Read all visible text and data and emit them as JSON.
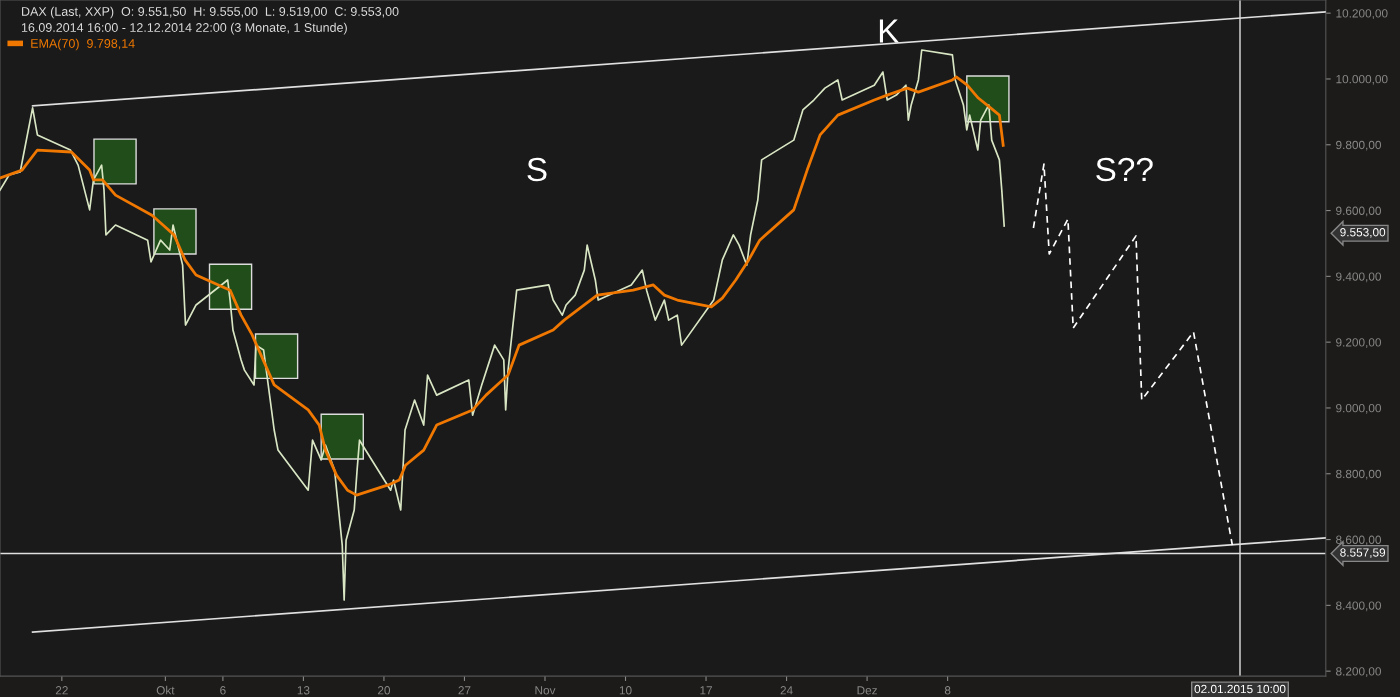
{
  "chart_data": {
    "type": "line",
    "title": "DAX (Last, XXP)  O: 9.551,50  H: 9.555,00  L: 9.519,00  C: 9.553,00",
    "subtitle": "16.09.2014 16:00 - 12.12.2014 22:00 (3 Monate, 1 Stunde)",
    "xlim": [
      "2014-09-16T15:00",
      "2015-01-09T21:00"
    ],
    "ylim": [
      8185,
      10240
    ],
    "xticks": [
      {
        "value": "2014-09-22",
        "label": "22"
      },
      {
        "value": "2014-10-01",
        "label": "Okt"
      },
      {
        "value": "2014-10-06",
        "label": "6"
      },
      {
        "value": "2014-10-13",
        "label": "13"
      },
      {
        "value": "2014-10-20",
        "label": "20"
      },
      {
        "value": "2014-10-27",
        "label": "27"
      },
      {
        "value": "2014-11-03",
        "label": "Nov"
      },
      {
        "value": "2014-11-10",
        "label": "10"
      },
      {
        "value": "2014-11-17",
        "label": "17"
      },
      {
        "value": "2014-11-24",
        "label": "24"
      },
      {
        "value": "2014-12-01",
        "label": "Dez"
      },
      {
        "value": "2014-12-08",
        "label": "8"
      }
    ],
    "yticks": [
      {
        "value": 8200,
        "label": "8.200,00"
      },
      {
        "value": 8400,
        "label": "8.400,00"
      },
      {
        "value": 8600,
        "label": "8.600,00"
      },
      {
        "value": 8800,
        "label": "8.800,00"
      },
      {
        "value": 9000,
        "label": "9.000,00"
      },
      {
        "value": 9200,
        "label": "9.200,00"
      },
      {
        "value": 9400,
        "label": "9.400,00"
      },
      {
        "value": 9600,
        "label": "9.600,00"
      },
      {
        "value": 9800,
        "label": "9.800,00"
      },
      {
        "value": 10000,
        "label": "10.000,00"
      },
      {
        "value": 10200,
        "label": "10.200,00"
      }
    ],
    "grid": false,
    "legend": "top left",
    "series": [
      {
        "type": "bar",
        "color": "#214d1a",
        "x": [
          "2014-09-26T15:00",
          "2014-10-01T20:00",
          "2014-10-06T16:00",
          "2014-10-10T16:00",
          "2014-10-16T09:00",
          "2014-12-11T12:00"
        ],
        "base": [
          9681,
          9468,
          9300,
          9090,
          8845,
          9870
        ],
        "values": [
          136,
          137,
          137,
          135,
          136,
          139
        ]
      },
      {
        "color": "#d9e6c4",
        "x": [
          "2014-09-16T15:00",
          "2014-09-17T10:00",
          "2014-09-18T09:00",
          "2014-09-18T18:00",
          "2014-09-19T11:00",
          "2014-09-19T21:00",
          "2014-09-22T18:00",
          "2014-09-23T10:00",
          "2014-09-24T10:00",
          "2014-09-24T18:00",
          "2014-09-25T11:00",
          "2014-09-25T16:00",
          "2014-09-25T20:00",
          "2014-09-26T16:00",
          "2014-09-29T11:00",
          "2014-09-29T18:00",
          "2014-09-30T14:00",
          "2014-10-01T09:00",
          "2014-10-01T16:00",
          "2014-10-02T12:00",
          "2014-10-02T18:00",
          "2014-10-03T16:00",
          "2014-10-06T10:00",
          "2014-10-06T15:00",
          "2014-10-06T21:00",
          "2014-10-07T14:00",
          "2014-10-07T21:00",
          "2014-10-08T17:00",
          "2014-10-08T21:00",
          "2014-10-09T13:00",
          "2014-10-10T11:00",
          "2014-10-10T19:00",
          "2014-10-13T10:00",
          "2014-10-13T19:00",
          "2014-10-14T13:00",
          "2014-10-14T22:00",
          "2014-10-15T17:00",
          "2014-10-16T09:00",
          "2014-10-16T13:00",
          "2014-10-16T17:00",
          "2014-10-17T10:00",
          "2014-10-17T16:00",
          "2014-10-17T21:00",
          "2014-10-20T14:00",
          "2014-10-20T20:00",
          "2014-10-21T11:00",
          "2014-10-21T20:00",
          "2014-10-22T16:00",
          "2014-10-23T11:00",
          "2014-10-23T19:00",
          "2014-10-24T14:00",
          "2014-10-27T09:00",
          "2014-10-27T17:00",
          "2014-10-28T12:00",
          "2014-10-29T15:00",
          "2014-10-30T10:00",
          "2014-10-30T14:00",
          "2014-10-30T19:00",
          "2014-10-31T13:00",
          "2014-11-03T08:00",
          "2014-11-03T17:00",
          "2014-11-04T12:00",
          "2014-11-04T20:00",
          "2014-11-05T15:00",
          "2014-11-06T10:00",
          "2014-11-06T16:00",
          "2014-11-07T09:00",
          "2014-11-07T15:00",
          "2014-11-10T12:00",
          "2014-11-11T11:00",
          "2014-11-11T20:00",
          "2014-11-12T14:00",
          "2014-11-13T09:00",
          "2014-11-13T18:00",
          "2014-11-14T12:00",
          "2014-11-14T21:00",
          "2014-11-17T16:00",
          "2014-11-18T10:00",
          "2014-11-19T09:00",
          "2014-11-19T21:00",
          "2014-11-20T13:00",
          "2014-11-20T21:00",
          "2014-11-21T12:00",
          "2014-11-21T20:00",
          "2014-11-24T15:00",
          "2014-11-25T10:00",
          "2014-11-26T09:00",
          "2014-11-27T08:00",
          "2014-11-28T11:00",
          "2014-11-28T20:00",
          "2014-12-01T15:00",
          "2014-12-02T09:00",
          "2014-12-02T18:00",
          "2014-12-03T13:00",
          "2014-12-04T09:00",
          "2014-12-04T14:00",
          "2014-12-04T20:00",
          "2014-12-05T11:00",
          "2014-12-05T18:00",
          "2014-12-08T10:00",
          "2014-12-08T16:00",
          "2014-12-09T09:00",
          "2014-12-09T16:00",
          "2014-12-09T22:00",
          "2014-12-10T15:00",
          "2014-12-10T21:00",
          "2014-12-11T14:00",
          "2014-12-11T20:00",
          "2014-12-12T12:00",
          "2014-12-12T17:00",
          "2014-12-12T22:00"
        ],
        "values": [
          9662,
          9708,
          9717,
          9784,
          9912,
          9830,
          9784,
          9738,
          9602,
          9693,
          9738,
          9662,
          9526,
          9556,
          9510,
          9444,
          9510,
          9480,
          9556,
          9434,
          9252,
          9313,
          9389,
          9328,
          9237,
          9146,
          9115,
          9070,
          9191,
          9176,
          8933,
          8872,
          8750,
          8902,
          8842,
          8887,
          8811,
          8583,
          8416,
          8598,
          8690,
          8811,
          8902,
          8750,
          8781,
          8690,
          8933,
          9024,
          8948,
          9100,
          9039,
          9085,
          8978,
          9070,
          9191,
          9146,
          8994,
          9115,
          9358,
          9374,
          9328,
          9282,
          9313,
          9343,
          9419,
          9495,
          9389,
          9328,
          9374,
          9419,
          9358,
          9267,
          9328,
          9267,
          9282,
          9191,
          9328,
          9450,
          9526,
          9495,
          9434,
          9526,
          9632,
          9754,
          9814,
          9906,
          9936,
          9972,
          9997,
          9936,
          9981,
          10021,
          9936,
          9951,
          9981,
          9875,
          9921,
          9997,
          10088,
          10073,
          9997,
          9921,
          9845,
          9890,
          9784,
          9875,
          9921,
          9814,
          9754,
          9662,
          9553
        ]
      },
      {
        "type": "line",
        "name": "EMA(70)  9.798,14",
        "color": "#f07800",
        "x": [
          "2014-09-16T15:00",
          "2014-09-18T13:00",
          "2014-09-19T21:00",
          "2014-09-22T20:00",
          "2014-09-24T10:00",
          "2014-09-24T18:00",
          "2014-09-25T13:00",
          "2014-09-26T16:00",
          "2014-09-29T20:00",
          "2014-09-30T19:00",
          "2014-10-01T18:00",
          "2014-10-02T17:00",
          "2014-10-03T16:00",
          "2014-10-06T15:00",
          "2014-10-07T14:00",
          "2014-10-08T13:00",
          "2014-10-09T12:00",
          "2014-10-10T11:00",
          "2014-10-13T10:00",
          "2014-10-14T09:00",
          "2014-10-14T22:00",
          "2014-10-15T21:00",
          "2014-10-16T20:00",
          "2014-10-17T15:00",
          "2014-10-20T09:00",
          "2014-10-21T08:00",
          "2014-10-21T21:00",
          "2014-10-23T11:00",
          "2014-10-24T14:00",
          "2014-10-27T17:00",
          "2014-10-28T21:00",
          "2014-10-29T20:00",
          "2014-10-30T19:00",
          "2014-10-31T18:00",
          "2014-11-03T17:00",
          "2014-11-04T16:00",
          "2014-11-06T10:00",
          "2014-11-07T13:00",
          "2014-11-10T16:00",
          "2014-11-12T10:00",
          "2014-11-13T09:00",
          "2014-11-14T12:00",
          "2014-11-17T11:00",
          "2014-11-18T10:00",
          "2014-11-19T14:00",
          "2014-11-20T17:00",
          "2014-11-21T16:00",
          "2014-11-24T15:00",
          "2014-11-25T19:00",
          "2014-11-26T22:00",
          "2014-11-28T11:00",
          "2014-12-01T15:00",
          "2014-12-02T18:00",
          "2014-12-04T12:00",
          "2014-12-05T11:00",
          "2014-12-08T10:00",
          "2014-12-08T18:00",
          "2014-12-09T17:00",
          "2014-12-10T16:00",
          "2014-12-11T15:00",
          "2014-12-12T12:00",
          "2014-12-12T20:00"
        ],
        "values": [
          9699,
          9723,
          9784,
          9778,
          9723,
          9693,
          9693,
          9647,
          9586,
          9556,
          9526,
          9450,
          9404,
          9358,
          9282,
          9222,
          9146,
          9070,
          8994,
          8948,
          8872,
          8796,
          8750,
          8735,
          8766,
          8781,
          8826,
          8872,
          8948,
          8994,
          9039,
          9070,
          9100,
          9191,
          9237,
          9267,
          9313,
          9343,
          9358,
          9374,
          9343,
          9328,
          9307,
          9334,
          9389,
          9450,
          9510,
          9602,
          9723,
          9830,
          9890,
          9936,
          9951,
          9972,
          9960,
          9997,
          10006,
          9981,
          9942,
          9915,
          9890,
          9798
        ]
      },
      {
        "type": "line",
        "color": "#e0e0e0",
        "x": [
          "2014-09-19T11:00",
          "2015-01-09T21:00"
        ],
        "values": [
          9918,
          10204
        ]
      },
      {
        "type": "line",
        "color": "#e0e0e0",
        "x": [
          "2014-09-19T11:00",
          "2015-01-09T21:00"
        ],
        "values": [
          8319,
          8605
        ]
      },
      {
        "type": "line",
        "color": "#ffffff",
        "line_style": "dashed",
        "x": [
          "2014-12-15T11:00",
          "2014-12-16T09:00",
          "2014-12-16T20:00",
          "2014-12-18T11:00",
          "2014-12-18T22:00",
          "2014-12-24T09:00",
          "2014-12-24T21:00",
          "2014-12-29T09:00",
          "2015-01-01T18:00"
        ],
        "values": [
          9547,
          9741,
          9468,
          9574,
          9243,
          9523,
          9024,
          9231,
          8583
        ]
      }
    ],
    "ref_lines": [
      {
        "axis": "y",
        "value": 8557.59,
        "label": "8.557,59",
        "color": "#e0e0e0"
      },
      {
        "axis": "x",
        "value": "2015-01-02T10:00",
        "label": "02.01.2015 10:00",
        "color": "#e0e0e0"
      }
    ],
    "annotations": [
      "S",
      "K",
      "S??",
      "9.553,00"
    ]
  }
}
